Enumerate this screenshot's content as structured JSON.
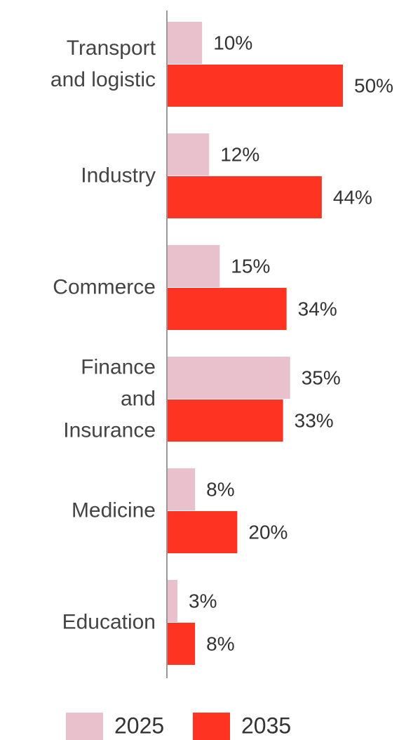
{
  "chart_data": {
    "type": "barh",
    "categories": [
      "Transport and logistic",
      "Industry",
      "Commerce",
      "Finance and Insurance",
      "Medicine",
      "Education"
    ],
    "series": [
      {
        "name": "2025",
        "color": "#e8c1cc",
        "values": [
          10,
          12,
          15,
          35,
          8,
          3
        ],
        "value_labels": [
          "10%",
          "12%",
          "15%",
          "35%",
          "8%",
          "3%"
        ]
      },
      {
        "name": "2035",
        "color": "#ff3322",
        "values": [
          50,
          44,
          34,
          33,
          20,
          8
        ],
        "value_labels": [
          "50%",
          "44%",
          "34%",
          "33%",
          "20%",
          "8%"
        ]
      }
    ]
  }
}
